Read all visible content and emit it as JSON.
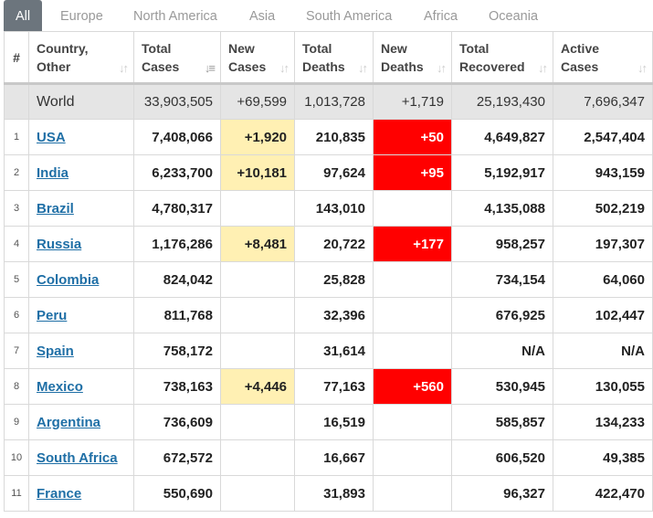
{
  "tabs": [
    "All",
    "Europe",
    "North America",
    "Asia",
    "South America",
    "Africa",
    "Oceania"
  ],
  "columns": {
    "idx": "#",
    "country": [
      "Country,",
      "Other"
    ],
    "total_cases": [
      "Total",
      "Cases"
    ],
    "new_cases": [
      "New",
      "Cases"
    ],
    "total_deaths": [
      "Total",
      "Deaths"
    ],
    "new_deaths": [
      "New",
      "Deaths"
    ],
    "total_recovered": [
      "Total",
      "Recovered"
    ],
    "active_cases": [
      "Active",
      "Cases"
    ]
  },
  "sort_icons": {
    "default": "sort-updown-icon",
    "active": "sort-desc-icon"
  },
  "colors": {
    "new_cases_highlight": "#fff0b3",
    "new_deaths_highlight": "#ff0000",
    "world_row": "#e5e5e5",
    "link": "#1f6fa6"
  },
  "world": {
    "label": "World",
    "total_cases": "33,903,505",
    "new_cases": "+69,599",
    "total_deaths": "1,013,728",
    "new_deaths": "+1,719",
    "total_recovered": "25,193,430",
    "active_cases": "7,696,347"
  },
  "rows": [
    {
      "idx": "1",
      "country": "USA",
      "total_cases": "7,408,066",
      "new_cases": "+1,920",
      "total_deaths": "210,835",
      "new_deaths": "+50",
      "total_recovered": "4,649,827",
      "active_cases": "2,547,404"
    },
    {
      "idx": "2",
      "country": "India",
      "total_cases": "6,233,700",
      "new_cases": "+10,181",
      "total_deaths": "97,624",
      "new_deaths": "+95",
      "total_recovered": "5,192,917",
      "active_cases": "943,159"
    },
    {
      "idx": "3",
      "country": "Brazil",
      "total_cases": "4,780,317",
      "new_cases": "",
      "total_deaths": "143,010",
      "new_deaths": "",
      "total_recovered": "4,135,088",
      "active_cases": "502,219"
    },
    {
      "idx": "4",
      "country": "Russia",
      "total_cases": "1,176,286",
      "new_cases": "+8,481",
      "total_deaths": "20,722",
      "new_deaths": "+177",
      "total_recovered": "958,257",
      "active_cases": "197,307"
    },
    {
      "idx": "5",
      "country": "Colombia",
      "total_cases": "824,042",
      "new_cases": "",
      "total_deaths": "25,828",
      "new_deaths": "",
      "total_recovered": "734,154",
      "active_cases": "64,060"
    },
    {
      "idx": "6",
      "country": "Peru",
      "total_cases": "811,768",
      "new_cases": "",
      "total_deaths": "32,396",
      "new_deaths": "",
      "total_recovered": "676,925",
      "active_cases": "102,447"
    },
    {
      "idx": "7",
      "country": "Spain",
      "total_cases": "758,172",
      "new_cases": "",
      "total_deaths": "31,614",
      "new_deaths": "",
      "total_recovered": "N/A",
      "active_cases": "N/A"
    },
    {
      "idx": "8",
      "country": "Mexico",
      "total_cases": "738,163",
      "new_cases": "+4,446",
      "total_deaths": "77,163",
      "new_deaths": "+560",
      "total_recovered": "530,945",
      "active_cases": "130,055"
    },
    {
      "idx": "9",
      "country": "Argentina",
      "total_cases": "736,609",
      "new_cases": "",
      "total_deaths": "16,519",
      "new_deaths": "",
      "total_recovered": "585,857",
      "active_cases": "134,233"
    },
    {
      "idx": "10",
      "country": "South Africa",
      "total_cases": "672,572",
      "new_cases": "",
      "total_deaths": "16,667",
      "new_deaths": "",
      "total_recovered": "606,520",
      "active_cases": "49,385"
    },
    {
      "idx": "11",
      "country": "France",
      "total_cases": "550,690",
      "new_cases": "",
      "total_deaths": "31,893",
      "new_deaths": "",
      "total_recovered": "96,327",
      "active_cases": "422,470"
    }
  ]
}
